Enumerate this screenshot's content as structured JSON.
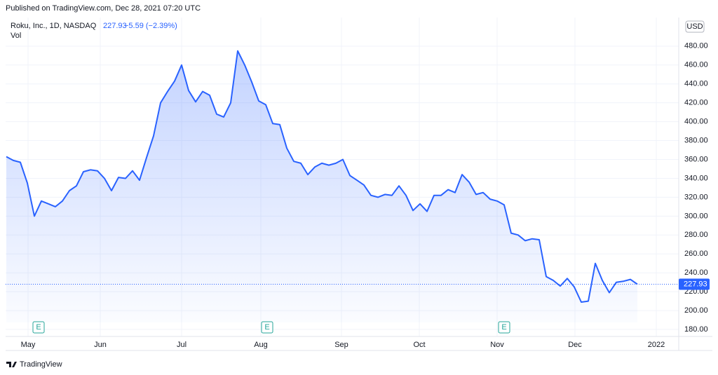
{
  "header": {
    "published": "Published on TradingView.com, Dec 28, 2021 07:20 UTC"
  },
  "chart_data": {
    "type": "line",
    "symbol": "Roku, Inc., 1D, NASDAQ",
    "last_price": 227.93,
    "change": "−5.59 (−2.39%)",
    "volume_label": "Vol",
    "currency": "USD",
    "events": [
      "E",
      "E",
      "E"
    ],
    "series": [
      {
        "name": "Roku, Inc.",
        "color": "#2962ff",
        "values": [
          363,
          359,
          357,
          335,
          300,
          316,
          313,
          310,
          316,
          327,
          332,
          347,
          349,
          348,
          340,
          327,
          341,
          340,
          348,
          338,
          362,
          385,
          420,
          432,
          443,
          460,
          433,
          421,
          432,
          428,
          408,
          405,
          420,
          475,
          460,
          442,
          422,
          418,
          398,
          397,
          372,
          358,
          356,
          344,
          352,
          356,
          354,
          356,
          360,
          343,
          338,
          333,
          322,
          320,
          323,
          322,
          332,
          322,
          306,
          313,
          305,
          322,
          322,
          328,
          325,
          344,
          336,
          323,
          325,
          318,
          316,
          312,
          282,
          280,
          274,
          276,
          275,
          236,
          232,
          226,
          234,
          225,
          209,
          210,
          250,
          232,
          219,
          230,
          231,
          233,
          227.93
        ]
      }
    ],
    "xlim": [
      0,
      95.9
    ],
    "xticks": [
      {
        "value": 3.1,
        "label": "May"
      },
      {
        "value": 13.4,
        "label": "Jun"
      },
      {
        "value": 25,
        "label": "Jul"
      },
      {
        "value": 36.3,
        "label": "Aug"
      },
      {
        "value": 47.8,
        "label": "Sep"
      },
      {
        "value": 58.9,
        "label": "Oct"
      },
      {
        "value": 70,
        "label": "Nov"
      },
      {
        "value": 81.1,
        "label": "Dec"
      },
      {
        "value": 92.7,
        "label": "2022"
      }
    ],
    "ylim": [
      172.6,
      510.3
    ],
    "yticks": [
      {
        "value": 180,
        "label": "180.00"
      },
      {
        "value": 200,
        "label": "200.00"
      },
      {
        "value": 220,
        "label": "220.00"
      },
      {
        "value": 240,
        "label": "240.00"
      },
      {
        "value": 260,
        "label": "260.00"
      },
      {
        "value": 280,
        "label": "280.00"
      },
      {
        "value": 300,
        "label": "300.00"
      },
      {
        "value": 320,
        "label": "320.00"
      },
      {
        "value": 340,
        "label": "340.00"
      },
      {
        "value": 360,
        "label": "360.00"
      },
      {
        "value": 380,
        "label": "380.00"
      },
      {
        "value": 400,
        "label": "400.00"
      },
      {
        "value": 420,
        "label": "420.00"
      },
      {
        "value": 440,
        "label": "440.00"
      },
      {
        "value": 460,
        "label": "460.00"
      },
      {
        "value": 480,
        "label": "480.00"
      }
    ],
    "grid": true
  },
  "footer": {
    "brand": "TradingView"
  }
}
